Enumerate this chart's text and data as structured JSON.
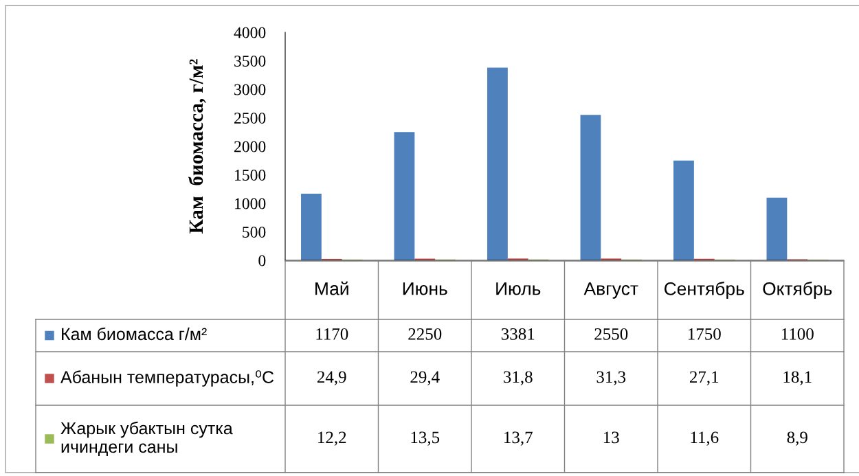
{
  "chart_data": {
    "type": "bar",
    "ylabel": "Кам  биомасса, г/м²",
    "categories": [
      "Май",
      "Июнь",
      "Июль",
      "Август",
      "Сентябрь",
      "Октябрь"
    ],
    "series": [
      {
        "name": "Кам биомасса г/м²",
        "color": "#4f81bd",
        "values": [
          1170,
          2250,
          3381,
          2550,
          1750,
          1100
        ],
        "value_labels": [
          "1170",
          "2250",
          "3381",
          "2550",
          "1750",
          "1100"
        ]
      },
      {
        "name": "Абанын температурасы,⁰C",
        "color": "#c0504d",
        "values": [
          24.9,
          29.4,
          31.8,
          31.3,
          27.1,
          18.1
        ],
        "value_labels": [
          "24,9",
          "29,4",
          "31,8",
          "31,3",
          "27,1",
          "18,1"
        ]
      },
      {
        "name": "Жарык убактын сутка ичиндеги саны",
        "color": "#9bbb59",
        "values": [
          12.2,
          13.5,
          13.7,
          13,
          11.6,
          8.9
        ],
        "value_labels": [
          "12,2",
          "13,5",
          "13,7",
          "13",
          "11,6",
          "8,9"
        ]
      }
    ],
    "ylim": [
      0,
      4000
    ],
    "yticks": [
      0,
      500,
      1000,
      1500,
      2000,
      2500,
      3000,
      3500,
      4000
    ],
    "grid": false,
    "legend": "bottom"
  }
}
